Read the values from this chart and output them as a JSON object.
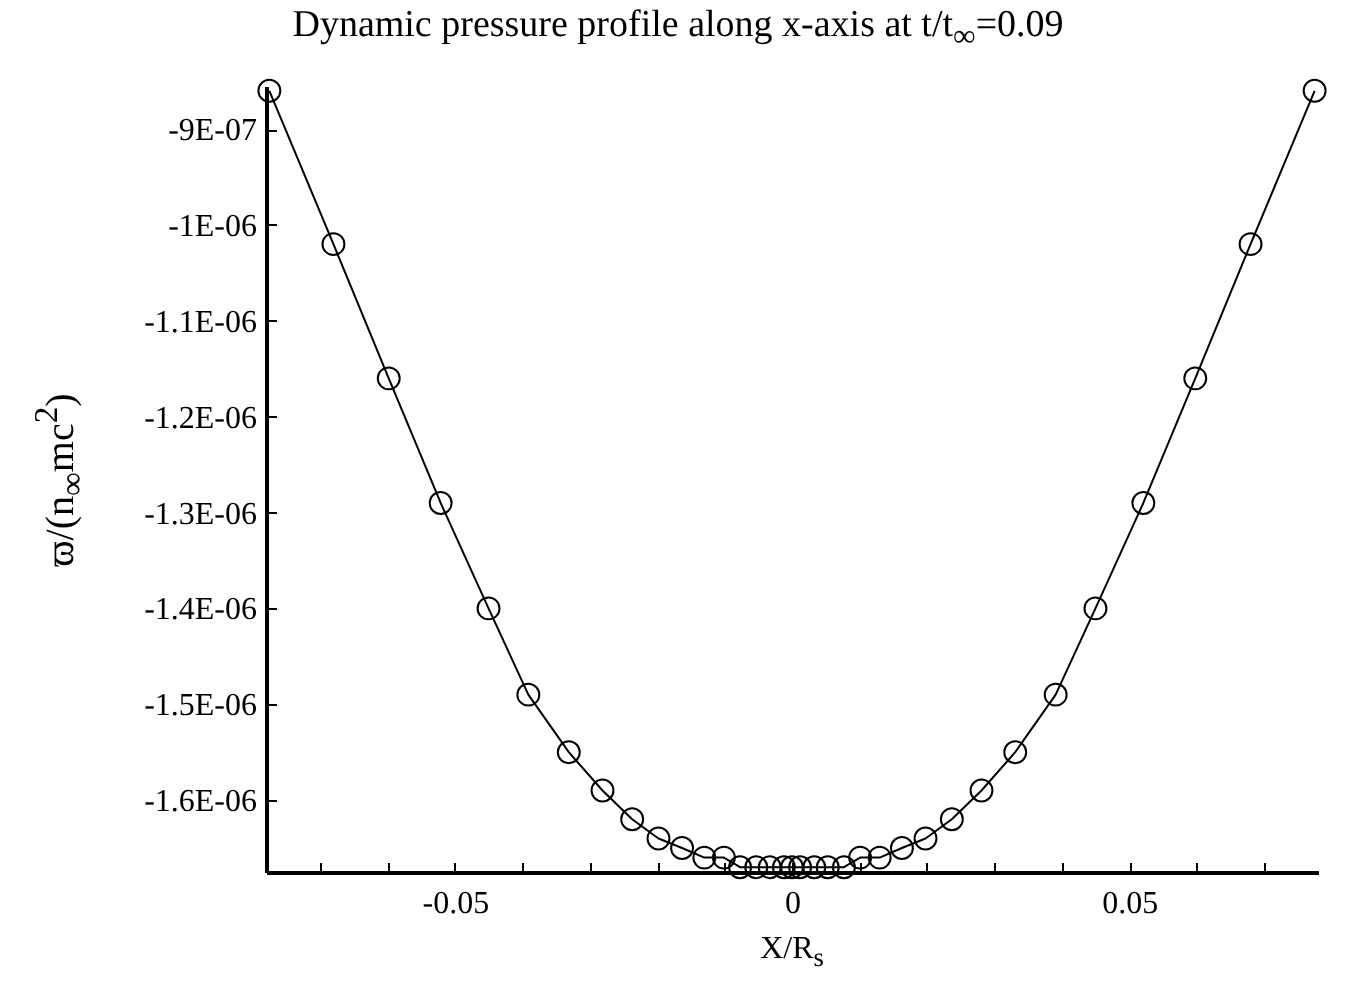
{
  "chart_data": {
    "type": "line",
    "title": "Dynamic pressure profile along x-axis at t/t$_{∞}$=0.09",
    "xlabel": "X/R$_{s}$",
    "ylabel": "ϖ/(n$_{∞}$mc$^{2}$)",
    "xlim": [
      -0.078,
      0.078
    ],
    "xticks": [
      {
        "value": -0.07,
        "label": null
      },
      {
        "value": -0.06,
        "label": null
      },
      -0.05,
      {
        "value": -0.04,
        "label": null
      },
      {
        "value": -0.03,
        "label": null
      },
      {
        "value": -0.02,
        "label": null
      },
      {
        "value": -0.01,
        "label": null
      },
      0,
      {
        "value": 0.01,
        "label": null
      },
      {
        "value": 0.02,
        "label": null
      },
      {
        "value": 0.03,
        "label": null
      },
      {
        "value": 0.04,
        "label": null
      },
      0.05,
      {
        "value": 0.06,
        "label": null
      },
      {
        "value": 0.07,
        "label": null
      }
    ],
    "ylim": [
      -1.675e-06,
      -8.55e-07
    ],
    "yticks": [
      {
        "value": -1.6e-06,
        "label": "-1.6E-06"
      },
      {
        "value": -1.5e-06,
        "label": "-1.5E-06"
      },
      {
        "value": -1.4e-06,
        "label": "-1.4E-06"
      },
      {
        "value": -1.3e-06,
        "label": "-1.3E-06"
      },
      {
        "value": -1.2e-06,
        "label": "-1.2E-06"
      },
      {
        "value": -1.1e-06,
        "label": "-1.1E-06"
      },
      {
        "value": -1e-06,
        "label": "-1E-06"
      },
      {
        "value": -9e-07,
        "label": "-9E-07"
      }
    ],
    "marker": "circle",
    "line_style": "solid",
    "grid": false,
    "legend": false,
    "series": [
      {
        "color": "#000000",
        "x": [
          -0.0775,
          -0.068,
          -0.0598,
          -0.0521,
          -0.045,
          -0.0391,
          -0.0331,
          -0.0281,
          -0.0237,
          -0.0198,
          -0.0163,
          -0.013,
          -0.0101,
          -0.0077,
          -0.0053,
          -0.0033,
          -0.0012,
          0,
          0.0012,
          0.0033,
          0.0053,
          0.0077,
          0.0101,
          0.013,
          0.0163,
          0.0198,
          0.0237,
          0.0281,
          0.0331,
          0.0391,
          0.045,
          0.0521,
          0.0598,
          0.068,
          0.0775
        ],
        "values": [
          -8.6e-07,
          -1.02e-06,
          -1.16e-06,
          -1.29e-06,
          -1.4e-06,
          -1.49e-06,
          -1.55e-06,
          -1.59e-06,
          -1.62e-06,
          -1.64e-06,
          -1.65e-06,
          -1.66e-06,
          -1.66e-06,
          -1.67e-06,
          -1.67e-06,
          -1.67e-06,
          -1.67e-06,
          -1.67e-06,
          -1.67e-06,
          -1.67e-06,
          -1.67e-06,
          -1.67e-06,
          -1.66e-06,
          -1.66e-06,
          -1.65e-06,
          -1.64e-06,
          -1.62e-06,
          -1.59e-06,
          -1.55e-06,
          -1.49e-06,
          -1.4e-06,
          -1.29e-06,
          -1.16e-06,
          -1.02e-06,
          -8.6e-07
        ]
      }
    ]
  }
}
